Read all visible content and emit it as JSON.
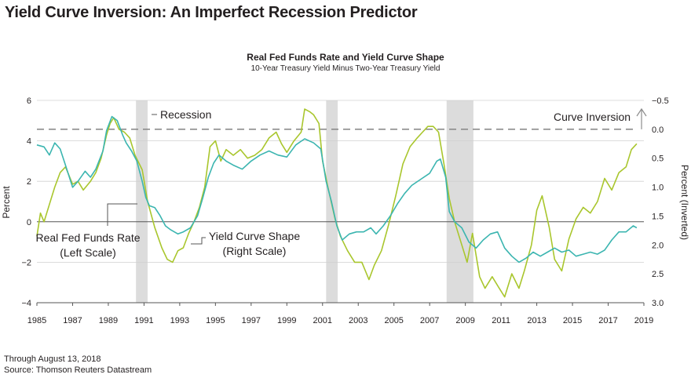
{
  "page_title": "Yield Curve Inversion: An Imperfect Recession Predictor",
  "footer": {
    "through": "Through August 13, 2018",
    "source": "Source: Thomson Reuters Datastream"
  },
  "colors": {
    "fed_funds": "#3bb5b0",
    "yield_curve": "#a9c62d",
    "recession": "#dcdcdc",
    "inversion_line": "#8c8c8c"
  },
  "chart_data": {
    "type": "line",
    "title": "Real Fed Funds Rate and Yield Curve Shape",
    "subtitle": "10-Year Treasury Yield Minus Two-Year Treasury Yield",
    "ylabel_left": "Percent",
    "ylabel_right": "Percent (Inverted)",
    "xlim": [
      1985,
      2019
    ],
    "ylim_left": [
      -4,
      6
    ],
    "ylim_right": [
      3.0,
      -0.5
    ],
    "x_ticks": [
      "1985",
      "1987",
      "1989",
      "1991",
      "1993",
      "1995",
      "1997",
      "1999",
      "2001",
      "2003",
      "2005",
      "2007",
      "2009",
      "2011",
      "2013",
      "2015",
      "2017",
      "2019"
    ],
    "y_left_ticks": [
      "6",
      "4",
      "2",
      "0",
      "-2",
      "-4"
    ],
    "y_right_ticks": [
      "-0.5",
      "0.0",
      "0.5",
      "1.0",
      "1.5",
      "2.0",
      "2.5",
      "3.0"
    ],
    "grid": true,
    "recessions": [
      [
        1990.55,
        1991.2
      ],
      [
        2001.2,
        2001.85
      ],
      [
        2007.95,
        2009.45
      ]
    ],
    "annotations": {
      "recession": "Recession",
      "curve_inversion": "Curve Inversion",
      "fed_funds_line1": "Real Fed Funds Rate",
      "fed_funds_line2": "(Left Scale)",
      "yield_line1": "Yield Curve Shape",
      "yield_line2": "(Right Scale)"
    },
    "series": [
      {
        "name": "Real Fed Funds Rate",
        "axis": "left",
        "points": [
          [
            1985.0,
            3.8
          ],
          [
            1985.4,
            3.7
          ],
          [
            1985.7,
            3.3
          ],
          [
            1986.0,
            3.9
          ],
          [
            1986.3,
            3.6
          ],
          [
            1986.6,
            2.8
          ],
          [
            1987.0,
            1.7
          ],
          [
            1987.3,
            2.0
          ],
          [
            1987.7,
            2.5
          ],
          [
            1988.0,
            2.2
          ],
          [
            1988.3,
            2.6
          ],
          [
            1988.7,
            3.5
          ],
          [
            1988.9,
            4.5
          ],
          [
            1989.2,
            5.2
          ],
          [
            1989.5,
            5.0
          ],
          [
            1989.8,
            4.3
          ],
          [
            1990.0,
            3.9
          ],
          [
            1990.3,
            3.5
          ],
          [
            1990.6,
            3.0
          ],
          [
            1990.9,
            2.0
          ],
          [
            1991.1,
            1.2
          ],
          [
            1991.3,
            0.8
          ],
          [
            1991.6,
            0.7
          ],
          [
            1991.9,
            0.3
          ],
          [
            1992.2,
            -0.2
          ],
          [
            1992.5,
            -0.4
          ],
          [
            1992.9,
            -0.6
          ],
          [
            1993.2,
            -0.5
          ],
          [
            1993.6,
            -0.3
          ],
          [
            1994.0,
            0.3
          ],
          [
            1994.3,
            1.2
          ],
          [
            1994.6,
            2.2
          ],
          [
            1994.9,
            2.9
          ],
          [
            1995.2,
            3.3
          ],
          [
            1995.6,
            3.0
          ],
          [
            1996.0,
            2.8
          ],
          [
            1996.5,
            2.6
          ],
          [
            1997.0,
            3.0
          ],
          [
            1997.5,
            3.3
          ],
          [
            1998.0,
            3.5
          ],
          [
            1998.5,
            3.3
          ],
          [
            1999.0,
            3.2
          ],
          [
            1999.5,
            3.8
          ],
          [
            2000.0,
            4.1
          ],
          [
            2000.5,
            3.9
          ],
          [
            2000.9,
            3.6
          ],
          [
            2001.2,
            2.0
          ],
          [
            2001.5,
            1.0
          ],
          [
            2001.8,
            -0.2
          ],
          [
            2002.1,
            -0.9
          ],
          [
            2002.5,
            -0.6
          ],
          [
            2002.9,
            -0.5
          ],
          [
            2003.3,
            -0.5
          ],
          [
            2003.7,
            -0.3
          ],
          [
            2004.0,
            -0.6
          ],
          [
            2004.4,
            -0.2
          ],
          [
            2004.8,
            0.3
          ],
          [
            2005.2,
            0.9
          ],
          [
            2005.6,
            1.4
          ],
          [
            2006.0,
            1.8
          ],
          [
            2006.5,
            2.1
          ],
          [
            2007.0,
            2.4
          ],
          [
            2007.4,
            3.0
          ],
          [
            2007.6,
            3.1
          ],
          [
            2007.9,
            2.2
          ],
          [
            2008.1,
            0.5
          ],
          [
            2008.4,
            0.0
          ],
          [
            2008.8,
            -0.3
          ],
          [
            2009.2,
            -1.0
          ],
          [
            2009.6,
            -1.3
          ],
          [
            2010.0,
            -0.9
          ],
          [
            2010.4,
            -0.6
          ],
          [
            2010.8,
            -0.5
          ],
          [
            2011.2,
            -1.3
          ],
          [
            2011.6,
            -1.7
          ],
          [
            2012.0,
            -2.0
          ],
          [
            2012.4,
            -1.8
          ],
          [
            2012.8,
            -1.5
          ],
          [
            2013.2,
            -1.7
          ],
          [
            2013.6,
            -1.5
          ],
          [
            2014.0,
            -1.3
          ],
          [
            2014.4,
            -1.5
          ],
          [
            2014.8,
            -1.4
          ],
          [
            2015.2,
            -1.7
          ],
          [
            2015.6,
            -1.6
          ],
          [
            2016.0,
            -1.5
          ],
          [
            2016.4,
            -1.6
          ],
          [
            2016.8,
            -1.4
          ],
          [
            2017.2,
            -0.9
          ],
          [
            2017.6,
            -0.5
          ],
          [
            2018.0,
            -0.5
          ],
          [
            2018.4,
            -0.2
          ],
          [
            2018.6,
            -0.3
          ]
        ]
      },
      {
        "name": "Yield Curve Shape",
        "axis": "right",
        "points": [
          [
            1985.0,
            1.85
          ],
          [
            1985.2,
            1.45
          ],
          [
            1985.4,
            1.6
          ],
          [
            1985.7,
            1.3
          ],
          [
            1986.0,
            1.0
          ],
          [
            1986.3,
            0.75
          ],
          [
            1986.6,
            0.65
          ],
          [
            1987.0,
            0.95
          ],
          [
            1987.3,
            0.9
          ],
          [
            1987.6,
            1.05
          ],
          [
            1988.0,
            0.9
          ],
          [
            1988.3,
            0.75
          ],
          [
            1988.6,
            0.5
          ],
          [
            1988.9,
            0.1
          ],
          [
            1989.1,
            -0.1
          ],
          [
            1989.3,
            -0.2
          ],
          [
            1989.6,
            0.0
          ],
          [
            1989.9,
            0.05
          ],
          [
            1990.2,
            0.15
          ],
          [
            1990.5,
            0.45
          ],
          [
            1990.9,
            0.7
          ],
          [
            1991.2,
            1.25
          ],
          [
            1991.6,
            1.7
          ],
          [
            1992.0,
            2.05
          ],
          [
            1992.3,
            2.25
          ],
          [
            1992.6,
            2.3
          ],
          [
            1992.9,
            2.1
          ],
          [
            1993.2,
            2.05
          ],
          [
            1993.5,
            1.8
          ],
          [
            1993.8,
            1.6
          ],
          [
            1994.1,
            1.35
          ],
          [
            1994.4,
            1.0
          ],
          [
            1994.7,
            0.3
          ],
          [
            1995.0,
            0.2
          ],
          [
            1995.3,
            0.55
          ],
          [
            1995.6,
            0.35
          ],
          [
            1996.0,
            0.45
          ],
          [
            1996.4,
            0.35
          ],
          [
            1996.8,
            0.5
          ],
          [
            1997.2,
            0.45
          ],
          [
            1997.6,
            0.35
          ],
          [
            1998.0,
            0.15
          ],
          [
            1998.4,
            0.05
          ],
          [
            1998.7,
            0.25
          ],
          [
            1999.0,
            0.4
          ],
          [
            1999.4,
            0.2
          ],
          [
            1999.8,
            0.05
          ],
          [
            2000.0,
            -0.35
          ],
          [
            2000.3,
            -0.3
          ],
          [
            2000.5,
            -0.25
          ],
          [
            2000.8,
            -0.1
          ],
          [
            2001.0,
            0.55
          ],
          [
            2001.3,
            1.0
          ],
          [
            2001.7,
            1.55
          ],
          [
            2002.0,
            1.85
          ],
          [
            2002.4,
            2.1
          ],
          [
            2002.8,
            2.3
          ],
          [
            2003.2,
            2.3
          ],
          [
            2003.6,
            2.6
          ],
          [
            2003.9,
            2.35
          ],
          [
            2004.3,
            2.1
          ],
          [
            2004.7,
            1.65
          ],
          [
            2005.1,
            1.15
          ],
          [
            2005.5,
            0.6
          ],
          [
            2005.9,
            0.3
          ],
          [
            2006.3,
            0.15
          ],
          [
            2006.6,
            0.05
          ],
          [
            2006.9,
            -0.05
          ],
          [
            2007.2,
            -0.05
          ],
          [
            2007.5,
            0.05
          ],
          [
            2007.8,
            0.6
          ],
          [
            2008.1,
            1.2
          ],
          [
            2008.4,
            1.6
          ],
          [
            2008.8,
            2.0
          ],
          [
            2009.1,
            2.3
          ],
          [
            2009.4,
            1.8
          ],
          [
            2009.8,
            2.55
          ],
          [
            2010.1,
            2.75
          ],
          [
            2010.5,
            2.55
          ],
          [
            2010.9,
            2.75
          ],
          [
            2011.2,
            2.9
          ],
          [
            2011.6,
            2.5
          ],
          [
            2012.0,
            2.75
          ],
          [
            2012.3,
            2.45
          ],
          [
            2012.7,
            2.0
          ],
          [
            2013.0,
            1.4
          ],
          [
            2013.3,
            1.15
          ],
          [
            2013.7,
            1.7
          ],
          [
            2014.0,
            2.25
          ],
          [
            2014.4,
            2.45
          ],
          [
            2014.8,
            1.9
          ],
          [
            2015.2,
            1.55
          ],
          [
            2015.6,
            1.35
          ],
          [
            2016.0,
            1.45
          ],
          [
            2016.4,
            1.25
          ],
          [
            2016.8,
            0.85
          ],
          [
            2017.2,
            1.05
          ],
          [
            2017.6,
            0.75
          ],
          [
            2018.0,
            0.65
          ],
          [
            2018.3,
            0.35
          ],
          [
            2018.6,
            0.25
          ]
        ]
      }
    ]
  }
}
